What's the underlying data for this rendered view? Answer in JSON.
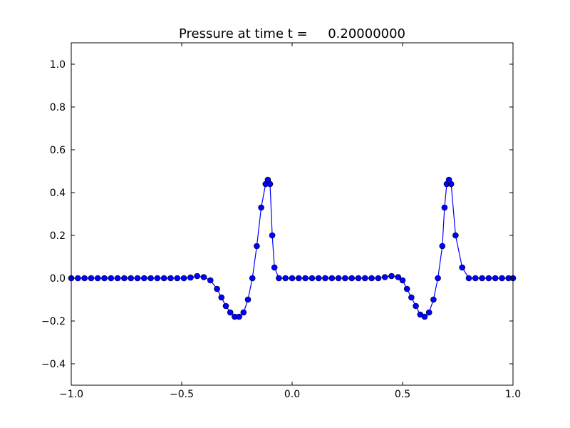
{
  "chart_data": {
    "type": "line",
    "title": "Pressure at time t =     0.20000000",
    "xlabel": "",
    "ylabel": "",
    "xlim": [
      -1.0,
      1.0
    ],
    "ylim": [
      -0.5,
      1.1
    ],
    "grid": false,
    "legend": "none",
    "x_ticks": [
      -1.0,
      -0.5,
      0.0,
      0.5,
      1.0
    ],
    "x_tick_labels": [
      "−1.0",
      "−0.5",
      "0.0",
      "0.5",
      "1.0"
    ],
    "y_ticks": [
      -0.4,
      -0.2,
      0.0,
      0.2,
      0.4,
      0.6,
      0.8,
      1.0
    ],
    "y_tick_labels": [
      "−0.4",
      "−0.2",
      "0.0",
      "0.2",
      "0.4",
      "0.6",
      "0.8",
      "1.0"
    ],
    "series": [
      {
        "color": "#0000ff",
        "marker": "circle",
        "x": [
          -1.0,
          -0.97,
          -0.94,
          -0.91,
          -0.88,
          -0.85,
          -0.82,
          -0.79,
          -0.76,
          -0.73,
          -0.7,
          -0.67,
          -0.64,
          -0.61,
          -0.58,
          -0.55,
          -0.52,
          -0.49,
          -0.46,
          -0.43,
          -0.4,
          -0.37,
          -0.34,
          -0.32,
          -0.3,
          -0.28,
          -0.26,
          -0.24,
          -0.22,
          -0.2,
          -0.18,
          -0.16,
          -0.14,
          -0.12,
          -0.11,
          -0.1,
          -0.09,
          -0.08,
          -0.06,
          -0.03,
          0.0,
          0.03,
          0.06,
          0.09,
          0.12,
          0.15,
          0.18,
          0.21,
          0.24,
          0.27,
          0.3,
          0.33,
          0.36,
          0.39,
          0.42,
          0.45,
          0.48,
          0.5,
          0.52,
          0.54,
          0.56,
          0.58,
          0.6,
          0.62,
          0.64,
          0.66,
          0.68,
          0.69,
          0.7,
          0.71,
          0.72,
          0.74,
          0.77,
          0.8,
          0.83,
          0.86,
          0.89,
          0.92,
          0.95,
          0.98,
          1.0
        ],
        "y": [
          0.0,
          0.0,
          0.0,
          0.0,
          0.0,
          0.0,
          0.0,
          0.0,
          0.0,
          0.0,
          0.0,
          0.0,
          0.0,
          0.0,
          0.0,
          0.0,
          0.0,
          0.0,
          0.003,
          0.01,
          0.005,
          -0.01,
          -0.05,
          -0.09,
          -0.13,
          -0.16,
          -0.18,
          -0.18,
          -0.16,
          -0.1,
          0.0,
          0.15,
          0.33,
          0.44,
          0.46,
          0.44,
          0.2,
          0.05,
          0.0,
          0.0,
          0.0,
          0.0,
          0.0,
          0.0,
          0.0,
          0.0,
          0.0,
          0.0,
          0.0,
          0.0,
          0.0,
          0.0,
          0.0,
          0.0,
          0.005,
          0.01,
          0.005,
          -0.01,
          -0.05,
          -0.09,
          -0.13,
          -0.17,
          -0.18,
          -0.16,
          -0.1,
          0.0,
          0.15,
          0.33,
          0.44,
          0.46,
          0.44,
          0.2,
          0.05,
          0.0,
          0.0,
          0.0,
          0.0,
          0.0,
          0.0,
          0.0,
          0.0
        ]
      }
    ]
  }
}
